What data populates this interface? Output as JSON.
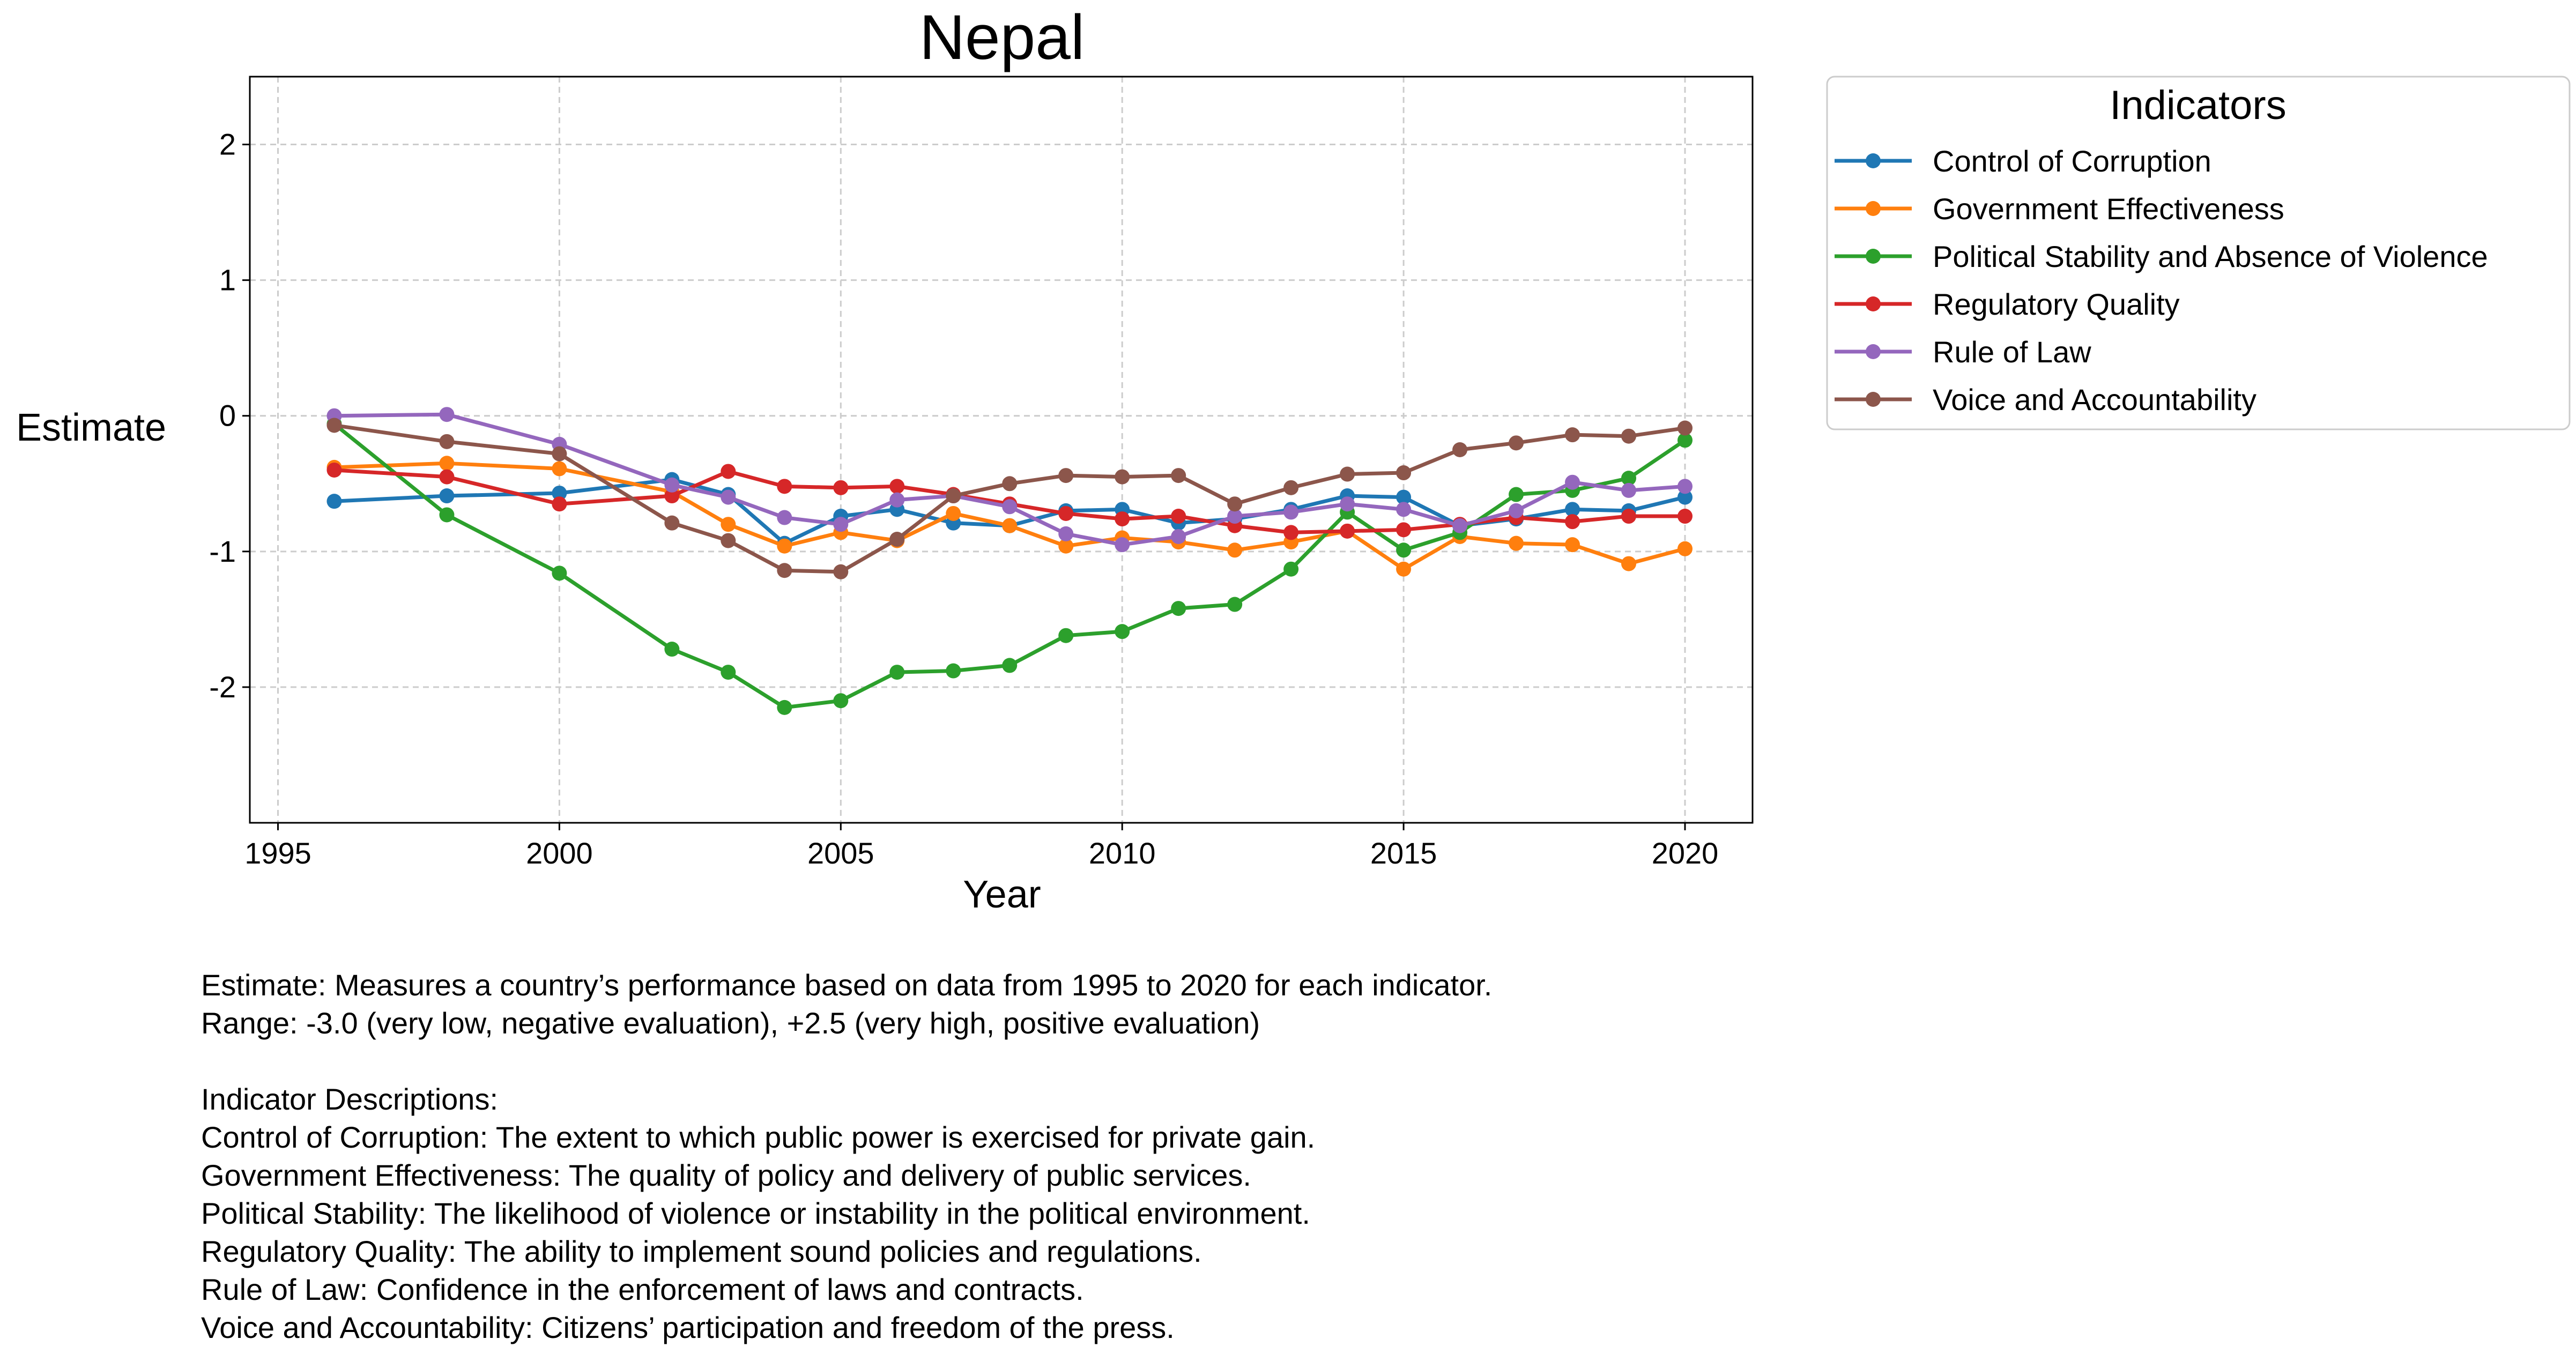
{
  "chart_data": {
    "type": "line",
    "title": "Nepal",
    "xlabel": "Year",
    "ylabel": "Estimate",
    "xlim": [
      1994.5,
      2021.2
    ],
    "ylim": [
      -3.0,
      2.5
    ],
    "xticks": [
      1995,
      2000,
      2005,
      2010,
      2015,
      2020
    ],
    "xtick_labels": [
      "1995",
      "2000",
      "2005",
      "2010",
      "2015",
      "2020"
    ],
    "yticks": [
      -2,
      -1,
      0,
      1,
      2
    ],
    "ytick_labels": [
      "-2",
      "-1",
      "0",
      "1",
      "2"
    ],
    "grid": true,
    "legend": {
      "title": "Indicators",
      "placement": "outside-top-right"
    },
    "x": [
      1996,
      1998,
      2000,
      2002,
      2003,
      2004,
      2005,
      2006,
      2007,
      2008,
      2009,
      2010,
      2011,
      2012,
      2013,
      2014,
      2015,
      2016,
      2017,
      2018,
      2019,
      2020
    ],
    "series": [
      {
        "name": "Control of Corruption",
        "color": "#1f77b4",
        "values": [
          -0.63,
          -0.59,
          -0.57,
          -0.47,
          -0.58,
          -0.94,
          -0.74,
          -0.69,
          -0.79,
          -0.81,
          -0.7,
          -0.69,
          -0.79,
          -0.76,
          -0.69,
          -0.59,
          -0.6,
          -0.81,
          -0.76,
          -0.69,
          -0.7,
          -0.6
        ]
      },
      {
        "name": "Government Effectiveness",
        "color": "#ff7f0e",
        "values": [
          -0.38,
          -0.35,
          -0.39,
          -0.56,
          -0.8,
          -0.96,
          -0.86,
          -0.92,
          -0.72,
          -0.81,
          -0.96,
          -0.9,
          -0.93,
          -0.99,
          -0.93,
          -0.85,
          -1.13,
          -0.89,
          -0.94,
          -0.95,
          -1.09,
          -0.98
        ]
      },
      {
        "name": "Political Stability and Absence of Violence",
        "color": "#2ca02c",
        "values": [
          -0.06,
          -0.73,
          -1.16,
          -1.72,
          -1.89,
          -2.15,
          -2.1,
          -1.89,
          -1.88,
          -1.84,
          -1.62,
          -1.59,
          -1.42,
          -1.39,
          -1.13,
          -0.71,
          -0.99,
          -0.86,
          -0.58,
          -0.55,
          -0.46,
          -0.18
        ]
      },
      {
        "name": "Regulatory Quality",
        "color": "#d62728",
        "values": [
          -0.4,
          -0.45,
          -0.65,
          -0.59,
          -0.41,
          -0.52,
          -0.53,
          -0.52,
          -0.58,
          -0.65,
          -0.72,
          -0.76,
          -0.74,
          -0.81,
          -0.86,
          -0.85,
          -0.84,
          -0.8,
          -0.75,
          -0.78,
          -0.74,
          -0.74
        ]
      },
      {
        "name": "Rule of Law",
        "color": "#9467bd",
        "values": [
          0.0,
          0.01,
          -0.21,
          -0.51,
          -0.6,
          -0.75,
          -0.8,
          -0.62,
          -0.59,
          -0.67,
          -0.87,
          -0.95,
          -0.89,
          -0.74,
          -0.71,
          -0.65,
          -0.69,
          -0.81,
          -0.7,
          -0.49,
          -0.55,
          -0.52
        ]
      },
      {
        "name": "Voice and Accountability",
        "color": "#8c564b",
        "values": [
          -0.07,
          -0.19,
          -0.28,
          -0.79,
          -0.92,
          -1.14,
          -1.15,
          -0.91,
          -0.59,
          -0.5,
          -0.44,
          -0.45,
          -0.44,
          -0.65,
          -0.53,
          -0.43,
          -0.42,
          -0.25,
          -0.2,
          -0.14,
          -0.15,
          -0.09
        ]
      }
    ]
  },
  "notes": [
    "Estimate: Measures a country’s performance based on data from 1995 to 2020 for each indicator.",
    "Range: -3.0 (very low, negative evaluation), +2.5 (very high, positive evaluation)",
    "",
    "Indicator Descriptions:",
    "Control of Corruption: The extent to which public power is exercised for private gain.",
    "Government Effectiveness: The quality of policy and delivery of public services.",
    "Political Stability: The likelihood of violence or instability in the political environment.",
    "Regulatory Quality: The ability to implement sound policies and regulations.",
    "Rule of Law: Confidence in the enforcement of laws and contracts.",
    "Voice and Accountability: Citizens’ participation and freedom of the press."
  ]
}
